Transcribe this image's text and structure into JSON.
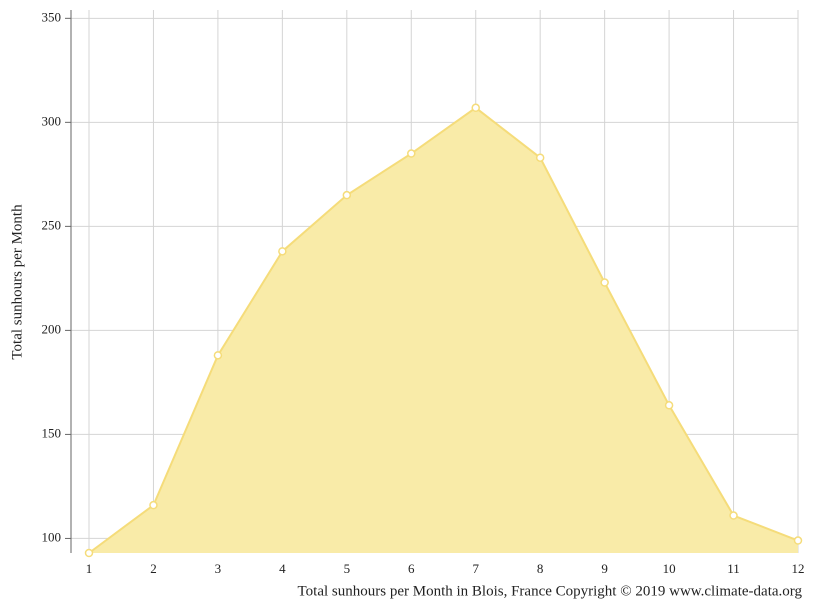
{
  "chart_data": {
    "type": "area",
    "ylabel": "Total sunhours per Month",
    "caption": "Total sunhours per Month in Blois, France Copyright © 2019 www.climate-data.org",
    "x": [
      1,
      2,
      3,
      4,
      5,
      6,
      7,
      8,
      9,
      10,
      11,
      12
    ],
    "values": [
      93,
      116,
      188,
      238,
      265,
      285,
      307,
      283,
      223,
      164,
      111,
      99
    ],
    "color": "#f5dc7a",
    "fill": "#f9eba8",
    "xlim": [
      1,
      12
    ],
    "xticks": [
      1,
      2,
      3,
      4,
      5,
      6,
      7,
      8,
      9,
      10,
      11,
      12
    ],
    "ylim": [
      93,
      354
    ],
    "yticks": [
      100,
      150,
      200,
      250,
      300,
      350
    ],
    "grid": true
  }
}
